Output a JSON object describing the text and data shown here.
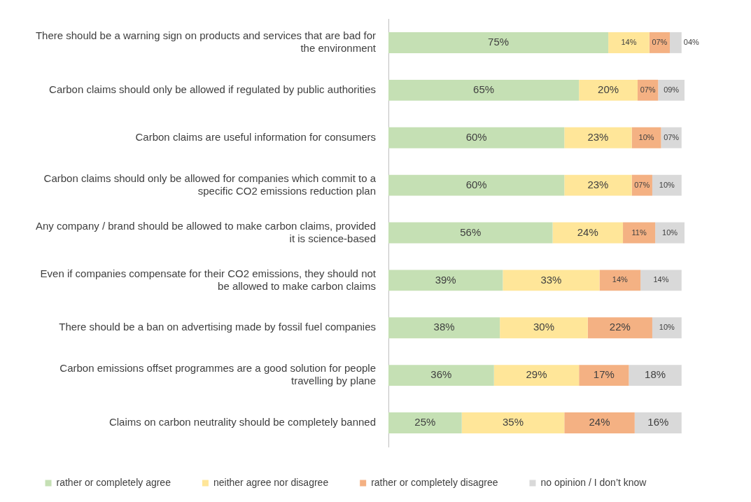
{
  "chart_data": {
    "type": "bar",
    "orientation": "horizontal",
    "stacked": true,
    "legend": "bottom",
    "tick_labels": "y",
    "xlim": [
      0,
      101
    ],
    "categories": [
      "There should be a warning sign on products and services that are bad for the environment",
      "Carbon claims should only be allowed if regulated by public authorities",
      "Carbon claims are useful information for consumers",
      "Carbon claims should only be allowed for companies which commit to a specific CO2 emissions reduction plan",
      "Any company / brand should be allowed to make carbon claims, provided it is science-based",
      "Even if companies compensate for their CO2 emissions, they should not be allowed to make carbon claims",
      "There should be a ban on advertising made by fossil fuel companies",
      "Carbon emissions offset programmes are a good solution for people travelling by plane",
      "Claims on carbon neutrality should be completely banned"
    ],
    "series": [
      {
        "name": "rather or completely agree",
        "color": "#c5e0b4",
        "values": [
          75,
          65,
          60,
          60,
          56,
          39,
          38,
          36,
          25
        ],
        "value_labels": [
          "75%",
          "65%",
          "60%",
          "60%",
          "56%",
          "39%",
          "38%",
          "36%",
          "25%"
        ]
      },
      {
        "name": "neither agree nor disagree",
        "color": "#ffe699",
        "values": [
          14,
          20,
          23,
          23,
          24,
          33,
          30,
          29,
          35
        ],
        "value_labels": [
          "14%",
          "20%",
          "23%",
          "23%",
          "24%",
          "33%",
          "30%",
          "29%",
          "35%"
        ]
      },
      {
        "name": "rather or completely disagree",
        "color": "#f4b183",
        "values": [
          7,
          7,
          10,
          7,
          11,
          14,
          22,
          17,
          24
        ],
        "value_labels": [
          "07%",
          "07%",
          "10%",
          "07%",
          "11%",
          "14%",
          "22%",
          "17%",
          "24%"
        ]
      },
      {
        "name": "no opinion / I don’t know",
        "color": "#d9d9d9",
        "values": [
          4,
          9,
          7,
          10,
          10,
          14,
          10,
          18,
          16
        ],
        "value_labels": [
          "04%",
          "09%",
          "07%",
          "10%",
          "10%",
          "14%",
          "10%",
          "18%",
          "16%"
        ]
      }
    ]
  }
}
